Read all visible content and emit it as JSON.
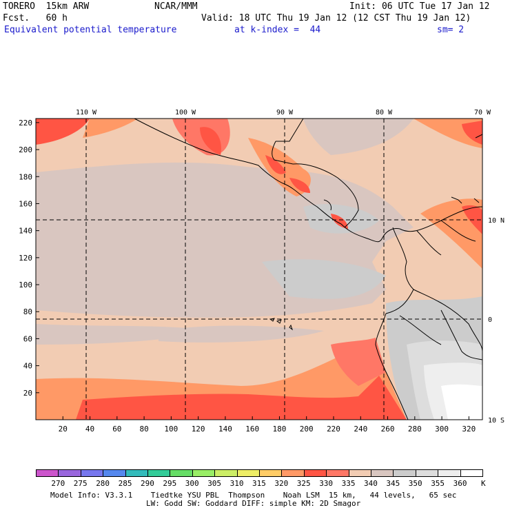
{
  "header": {
    "model": "TORERO  15km ARW",
    "org": "NCAR/MMM",
    "init": "Init: 06 UTC Tue 17 Jan 12",
    "fcst": "Fcst.   60 h",
    "valid": "Valid: 18 UTC Thu 19 Jan 12 (12 CST Thu 19 Jan 12)",
    "field": "Equivalent potential temperature",
    "kindex": "at k-index =  44",
    "sm": "sm= 2"
  },
  "map": {
    "lon_labels": [
      "110 W",
      "100 W",
      "90 W",
      "80 W",
      "70 W"
    ],
    "lat_labels": [
      "10 N",
      "0",
      "10 S"
    ],
    "y_ticks": [
      "220",
      "200",
      "180",
      "160",
      "140",
      "120",
      "100",
      "80",
      "60",
      "40",
      "20"
    ],
    "x_ticks": [
      "20",
      "40",
      "60",
      "80",
      "100",
      "120",
      "140",
      "160",
      "180",
      "200",
      "220",
      "240",
      "260",
      "280",
      "300",
      "320"
    ]
  },
  "colorbar": {
    "levels": [
      "270",
      "275",
      "280",
      "285",
      "290",
      "295",
      "300",
      "305",
      "310",
      "315",
      "320",
      "325",
      "330",
      "335",
      "340",
      "345",
      "350",
      "355",
      "360"
    ],
    "unit": "K",
    "colors": [
      "#cc55cc",
      "#9966dd",
      "#7777ee",
      "#5588ee",
      "#33bbbb",
      "#33cc99",
      "#66dd66",
      "#99ee66",
      "#ccee66",
      "#eeee66",
      "#ffcc66",
      "#ff9966",
      "#ff5544",
      "#ff7766",
      "#f2ccb3",
      "#d9c6c0",
      "#cccccc",
      "#dddddd",
      "#eeeeee",
      "#ffffff"
    ]
  },
  "footer": {
    "line1": "Model Info: V3.3.1    Tiedtke YSU PBL  Thompson    Noah LSM  15 km,   44 levels,   65 sec",
    "line2": "LW: Godd SW: Goddard DIFF: simple KM: 2D Smagor"
  }
}
